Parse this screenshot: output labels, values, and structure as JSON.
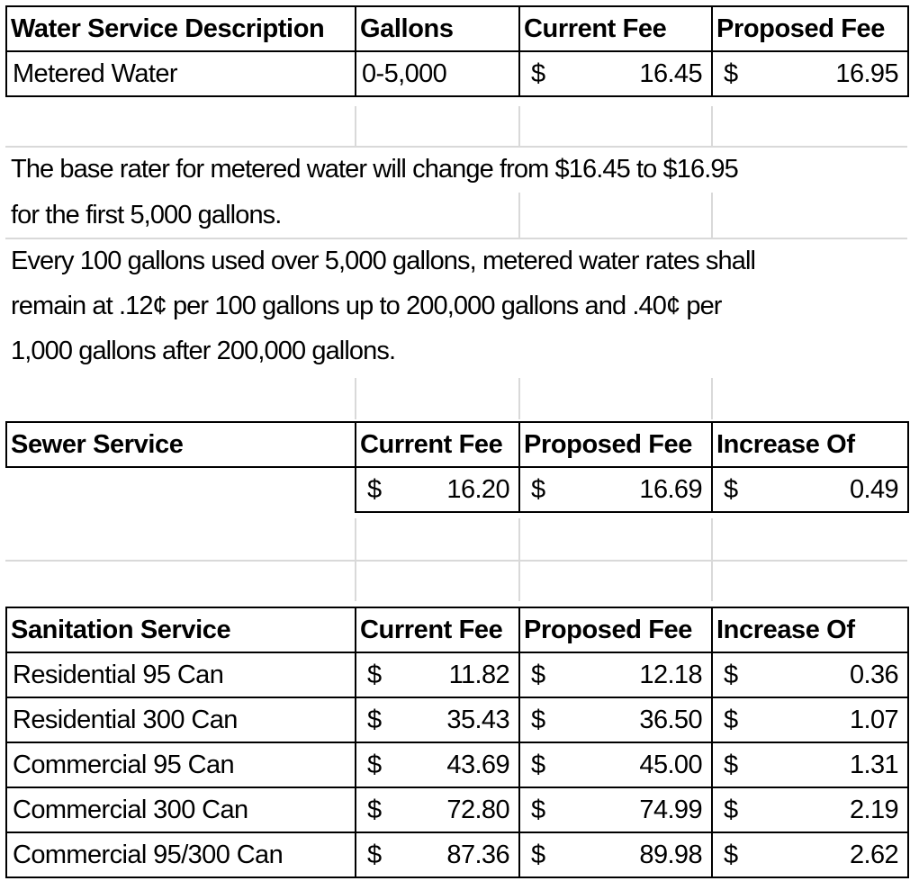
{
  "water": {
    "headers": [
      "Water Service Description",
      "Gallons",
      "Current Fee",
      "Proposed Fee"
    ],
    "row": {
      "description": "Metered Water",
      "gallons": "0-5,000",
      "current": {
        "currency": "$",
        "amount": "16.45"
      },
      "proposed": {
        "currency": "$",
        "amount": "16.95"
      }
    }
  },
  "notes": [
    "The base rater for metered water will change from $16.45 to $16.95",
    "for the first 5,000 gallons.",
    "Every 100 gallons used over 5,000 gallons, metered water rates shall",
    "remain at .12¢ per 100 gallons up to 200,000 gallons and .40¢ per",
    "1,000 gallons after 200,000 gallons."
  ],
  "sewer": {
    "headers": [
      "Sewer Service",
      "Current Fee",
      "Proposed Fee",
      "Increase Of"
    ],
    "row": {
      "current": {
        "currency": "$",
        "amount": "16.20"
      },
      "proposed": {
        "currency": "$",
        "amount": "16.69"
      },
      "increase": {
        "currency": "$",
        "amount": "0.49"
      }
    }
  },
  "sanitation": {
    "headers": [
      "Sanitation Service",
      "Current Fee",
      "Proposed Fee",
      "Increase Of"
    ],
    "rows": [
      {
        "name": "Residential 95 Can",
        "current": {
          "currency": "$",
          "amount": "11.82"
        },
        "proposed": {
          "currency": "$",
          "amount": "12.18"
        },
        "increase": {
          "currency": "$",
          "amount": "0.36"
        }
      },
      {
        "name": "Residential 300 Can",
        "current": {
          "currency": "$",
          "amount": "35.43"
        },
        "proposed": {
          "currency": "$",
          "amount": "36.50"
        },
        "increase": {
          "currency": "$",
          "amount": "1.07"
        }
      },
      {
        "name": "Commercial 95 Can",
        "current": {
          "currency": "$",
          "amount": "43.69"
        },
        "proposed": {
          "currency": "$",
          "amount": "45.00"
        },
        "increase": {
          "currency": "$",
          "amount": "1.31"
        }
      },
      {
        "name": "Commercial 300 Can",
        "current": {
          "currency": "$",
          "amount": "72.80"
        },
        "proposed": {
          "currency": "$",
          "amount": "74.99"
        },
        "increase": {
          "currency": "$",
          "amount": "2.19"
        }
      },
      {
        "name": "Commercial 95/300 Can",
        "current": {
          "currency": "$",
          "amount": "87.36"
        },
        "proposed": {
          "currency": "$",
          "amount": "89.98"
        },
        "increase": {
          "currency": "$",
          "amount": "2.62"
        }
      }
    ]
  }
}
